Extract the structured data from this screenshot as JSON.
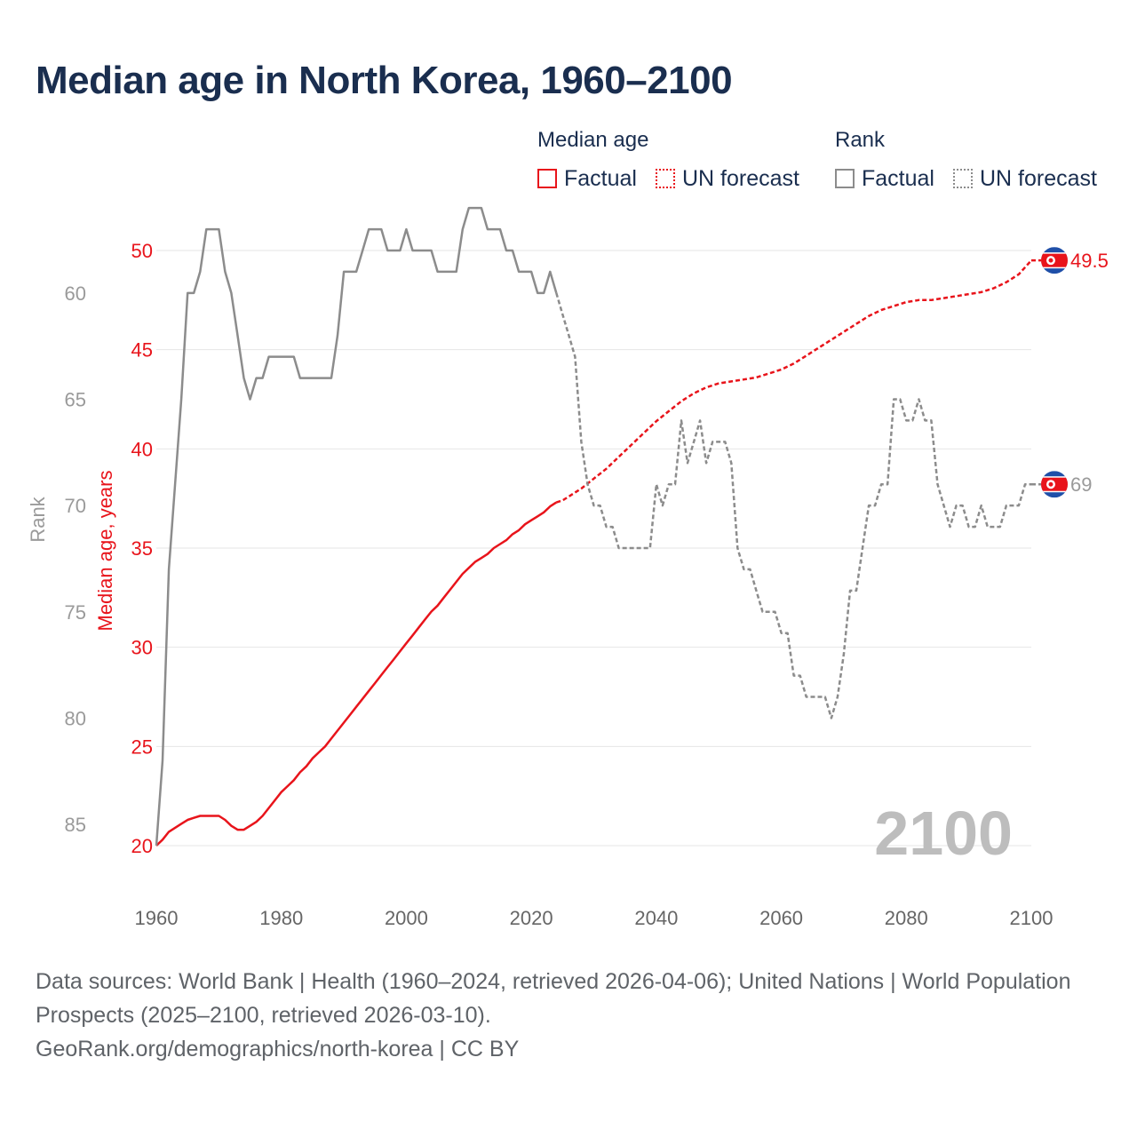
{
  "title": "Median age in North Korea, 1960–2100",
  "legend": {
    "median_group": "Median age",
    "rank_group": "Rank",
    "factual": "Factual",
    "forecast": "UN forecast"
  },
  "colors": {
    "median": "#e8141b",
    "rank": "#8c8c8c",
    "year_watermark": "#bdbdbd",
    "title": "#1a2e4f"
  },
  "footer": {
    "sources": "Data sources: World Bank | Health (1960–2024, retrieved 2026-04-06); United Nations | World Population Prospects (2025–2100, retrieved 2026-03-10).",
    "link": "GeoRank.org/demographics/north-korea | CC BY"
  },
  "chart_data": {
    "type": "line",
    "title": "Median age in North Korea, 1960–2100",
    "xlabel": "",
    "ylabel_left_outer": "Rank",
    "ylabel_left_inner": "Median age, years",
    "xlim": [
      1960,
      2100
    ],
    "x_ticks": [
      "1960",
      "1980",
      "2000",
      "2020",
      "2040",
      "2060",
      "2080",
      "2100"
    ],
    "median_ylim": [
      20,
      50
    ],
    "median_ticks": [
      "20",
      "25",
      "30",
      "35",
      "40",
      "45",
      "50"
    ],
    "rank_ylim": [
      86,
      58
    ],
    "rank_ticks": [
      "60",
      "65",
      "70",
      "75",
      "80",
      "85"
    ],
    "current_year_label": "2100",
    "end_label_median": "49.5",
    "end_label_rank": "69",
    "factual_end_year": 2024,
    "series": [
      {
        "name": "Median age",
        "axis": "median",
        "points": [
          [
            1960,
            20.0
          ],
          [
            1961,
            20.3
          ],
          [
            1962,
            20.7
          ],
          [
            1963,
            20.9
          ],
          [
            1964,
            21.1
          ],
          [
            1965,
            21.3
          ],
          [
            1966,
            21.4
          ],
          [
            1967,
            21.5
          ],
          [
            1968,
            21.5
          ],
          [
            1969,
            21.5
          ],
          [
            1970,
            21.5
          ],
          [
            1971,
            21.3
          ],
          [
            1972,
            21.0
          ],
          [
            1973,
            20.8
          ],
          [
            1974,
            20.8
          ],
          [
            1975,
            21.0
          ],
          [
            1976,
            21.2
          ],
          [
            1977,
            21.5
          ],
          [
            1978,
            21.9
          ],
          [
            1979,
            22.3
          ],
          [
            1980,
            22.7
          ],
          [
            1981,
            23.0
          ],
          [
            1982,
            23.3
          ],
          [
            1983,
            23.7
          ],
          [
            1984,
            24.0
          ],
          [
            1985,
            24.4
          ],
          [
            1986,
            24.7
          ],
          [
            1987,
            25.0
          ],
          [
            1988,
            25.4
          ],
          [
            1989,
            25.8
          ],
          [
            1990,
            26.2
          ],
          [
            1991,
            26.6
          ],
          [
            1992,
            27.0
          ],
          [
            1993,
            27.4
          ],
          [
            1994,
            27.8
          ],
          [
            1995,
            28.2
          ],
          [
            1996,
            28.6
          ],
          [
            1997,
            29.0
          ],
          [
            1998,
            29.4
          ],
          [
            1999,
            29.8
          ],
          [
            2000,
            30.2
          ],
          [
            2001,
            30.6
          ],
          [
            2002,
            31.0
          ],
          [
            2003,
            31.4
          ],
          [
            2004,
            31.8
          ],
          [
            2005,
            32.1
          ],
          [
            2006,
            32.5
          ],
          [
            2007,
            32.9
          ],
          [
            2008,
            33.3
          ],
          [
            2009,
            33.7
          ],
          [
            2010,
            34.0
          ],
          [
            2011,
            34.3
          ],
          [
            2012,
            34.5
          ],
          [
            2013,
            34.7
          ],
          [
            2014,
            35.0
          ],
          [
            2015,
            35.2
          ],
          [
            2016,
            35.4
          ],
          [
            2017,
            35.7
          ],
          [
            2018,
            35.9
          ],
          [
            2019,
            36.2
          ],
          [
            2020,
            36.4
          ],
          [
            2021,
            36.6
          ],
          [
            2022,
            36.8
          ],
          [
            2023,
            37.1
          ],
          [
            2024,
            37.3
          ],
          [
            2025,
            37.4
          ],
          [
            2026,
            37.6
          ],
          [
            2028,
            38.0
          ],
          [
            2030,
            38.5
          ],
          [
            2032,
            39.0
          ],
          [
            2034,
            39.6
          ],
          [
            2036,
            40.2
          ],
          [
            2038,
            40.8
          ],
          [
            2040,
            41.4
          ],
          [
            2042,
            41.9
          ],
          [
            2044,
            42.4
          ],
          [
            2046,
            42.8
          ],
          [
            2048,
            43.1
          ],
          [
            2050,
            43.3
          ],
          [
            2052,
            43.4
          ],
          [
            2054,
            43.5
          ],
          [
            2056,
            43.6
          ],
          [
            2058,
            43.8
          ],
          [
            2060,
            44.0
          ],
          [
            2062,
            44.3
          ],
          [
            2064,
            44.7
          ],
          [
            2066,
            45.1
          ],
          [
            2068,
            45.5
          ],
          [
            2070,
            45.9
          ],
          [
            2072,
            46.3
          ],
          [
            2074,
            46.7
          ],
          [
            2076,
            47.0
          ],
          [
            2078,
            47.2
          ],
          [
            2080,
            47.4
          ],
          [
            2082,
            47.5
          ],
          [
            2084,
            47.5
          ],
          [
            2086,
            47.6
          ],
          [
            2088,
            47.7
          ],
          [
            2090,
            47.8
          ],
          [
            2092,
            47.9
          ],
          [
            2094,
            48.1
          ],
          [
            2096,
            48.4
          ],
          [
            2098,
            48.8
          ],
          [
            2100,
            49.5
          ]
        ]
      },
      {
        "name": "Rank",
        "axis": "rank",
        "points": [
          [
            1960,
            86
          ],
          [
            1961,
            82
          ],
          [
            1962,
            73
          ],
          [
            1963,
            69
          ],
          [
            1964,
            65
          ],
          [
            1965,
            60
          ],
          [
            1966,
            60
          ],
          [
            1967,
            59
          ],
          [
            1968,
            57
          ],
          [
            1969,
            57
          ],
          [
            1970,
            57
          ],
          [
            1971,
            59
          ],
          [
            1972,
            60
          ],
          [
            1973,
            62
          ],
          [
            1974,
            64
          ],
          [
            1975,
            65
          ],
          [
            1976,
            64
          ],
          [
            1977,
            64
          ],
          [
            1978,
            63
          ],
          [
            1979,
            63
          ],
          [
            1980,
            63
          ],
          [
            1981,
            63
          ],
          [
            1982,
            63
          ],
          [
            1983,
            64
          ],
          [
            1984,
            64
          ],
          [
            1985,
            64
          ],
          [
            1986,
            64
          ],
          [
            1987,
            64
          ],
          [
            1988,
            64
          ],
          [
            1989,
            62
          ],
          [
            1990,
            59
          ],
          [
            1991,
            59
          ],
          [
            1992,
            59
          ],
          [
            1993,
            58
          ],
          [
            1994,
            57
          ],
          [
            1995,
            57
          ],
          [
            1996,
            57
          ],
          [
            1997,
            58
          ],
          [
            1998,
            58
          ],
          [
            1999,
            58
          ],
          [
            2000,
            57
          ],
          [
            2001,
            58
          ],
          [
            2002,
            58
          ],
          [
            2003,
            58
          ],
          [
            2004,
            58
          ],
          [
            2005,
            59
          ],
          [
            2006,
            59
          ],
          [
            2007,
            59
          ],
          [
            2008,
            59
          ],
          [
            2009,
            57
          ],
          [
            2010,
            56
          ],
          [
            2011,
            56
          ],
          [
            2012,
            56
          ],
          [
            2013,
            57
          ],
          [
            2014,
            57
          ],
          [
            2015,
            57
          ],
          [
            2016,
            58
          ],
          [
            2017,
            58
          ],
          [
            2018,
            59
          ],
          [
            2019,
            59
          ],
          [
            2020,
            59
          ],
          [
            2021,
            60
          ],
          [
            2022,
            60
          ],
          [
            2023,
            59
          ],
          [
            2024,
            60
          ],
          [
            2025,
            61
          ],
          [
            2026,
            62
          ],
          [
            2027,
            63
          ],
          [
            2028,
            67
          ],
          [
            2029,
            69
          ],
          [
            2030,
            70
          ],
          [
            2031,
            70
          ],
          [
            2032,
            71
          ],
          [
            2033,
            71
          ],
          [
            2034,
            72
          ],
          [
            2035,
            72
          ],
          [
            2036,
            72
          ],
          [
            2037,
            72
          ],
          [
            2038,
            72
          ],
          [
            2039,
            72
          ],
          [
            2040,
            69
          ],
          [
            2041,
            70
          ],
          [
            2042,
            69
          ],
          [
            2043,
            69
          ],
          [
            2044,
            66
          ],
          [
            2045,
            68
          ],
          [
            2046,
            67
          ],
          [
            2047,
            66
          ],
          [
            2048,
            68
          ],
          [
            2049,
            67
          ],
          [
            2050,
            67
          ],
          [
            2051,
            67
          ],
          [
            2052,
            68
          ],
          [
            2053,
            72
          ],
          [
            2054,
            73
          ],
          [
            2055,
            73
          ],
          [
            2056,
            74
          ],
          [
            2057,
            75
          ],
          [
            2058,
            75
          ],
          [
            2059,
            75
          ],
          [
            2060,
            76
          ],
          [
            2061,
            76
          ],
          [
            2062,
            78
          ],
          [
            2063,
            78
          ],
          [
            2064,
            79
          ],
          [
            2065,
            79
          ],
          [
            2066,
            79
          ],
          [
            2067,
            79
          ],
          [
            2068,
            80
          ],
          [
            2069,
            79
          ],
          [
            2070,
            77
          ],
          [
            2071,
            74
          ],
          [
            2072,
            74
          ],
          [
            2073,
            72
          ],
          [
            2074,
            70
          ],
          [
            2075,
            70
          ],
          [
            2076,
            69
          ],
          [
            2077,
            69
          ],
          [
            2078,
            65
          ],
          [
            2079,
            65
          ],
          [
            2080,
            66
          ],
          [
            2081,
            66
          ],
          [
            2082,
            65
          ],
          [
            2083,
            66
          ],
          [
            2084,
            66
          ],
          [
            2085,
            69
          ],
          [
            2086,
            70
          ],
          [
            2087,
            71
          ],
          [
            2088,
            70
          ],
          [
            2089,
            70
          ],
          [
            2090,
            71
          ],
          [
            2091,
            71
          ],
          [
            2092,
            70
          ],
          [
            2093,
            71
          ],
          [
            2094,
            71
          ],
          [
            2095,
            71
          ],
          [
            2096,
            70
          ],
          [
            2097,
            70
          ],
          [
            2098,
            70
          ],
          [
            2099,
            69
          ],
          [
            2100,
            69
          ]
        ]
      }
    ]
  }
}
